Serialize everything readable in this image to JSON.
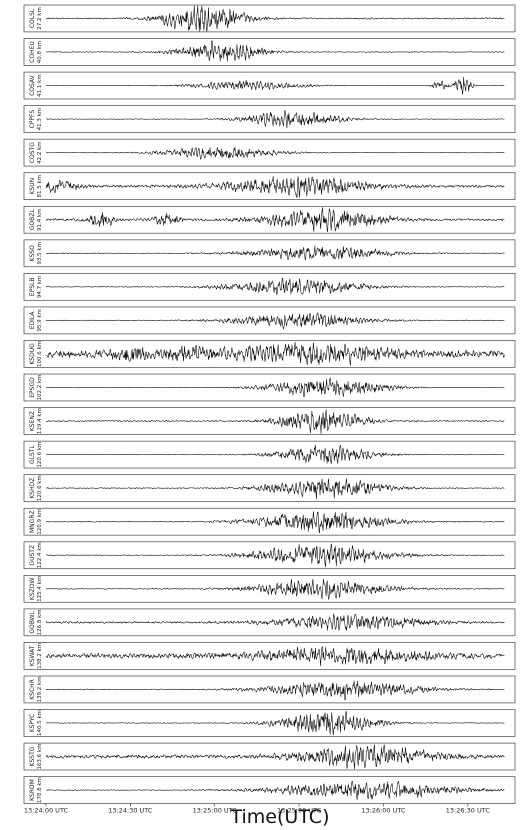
{
  "chart_data": {
    "type": "line",
    "xlabel": "Time(UTC)",
    "x_ticks": [
      "13:24:00 UTC",
      "13:24:30 UTC",
      "13:25:00 UTC",
      "13:25:30 UTC",
      "13:26:00 UTC",
      "13:26:30 UTC"
    ],
    "x_tick_seconds": [
      0,
      30,
      60,
      90,
      120,
      150
    ],
    "x_range": [
      0,
      165
    ],
    "grid": false,
    "legend": "none",
    "trace_color": "#000000",
    "series": [
      {
        "name": "COLSL",
        "distance": "27.2 km",
        "amp": 0.95,
        "noise": 0.05,
        "bursts": [
          [
            56,
            10,
            1.0
          ]
        ]
      },
      {
        "name": "COHEU",
        "distance": "40.8 km",
        "amp": 0.85,
        "noise": 0.03,
        "bursts": [
          [
            62,
            10,
            0.9
          ]
        ]
      },
      {
        "name": "COSAV",
        "distance": "41.1 km",
        "amp": 0.6,
        "noise": 0.02,
        "bursts": [
          [
            72,
            14,
            0.55
          ],
          [
            148,
            2,
            1.4
          ],
          [
            140,
            2,
            0.5
          ]
        ]
      },
      {
        "name": "CPPFS",
        "distance": "41.3 km",
        "amp": 0.7,
        "noise": 0.03,
        "bursts": [
          [
            88,
            12,
            0.8
          ]
        ]
      },
      {
        "name": "COSTG",
        "distance": "42.2 km",
        "amp": 0.6,
        "noise": 0.03,
        "bursts": [
          [
            62,
            14,
            0.7
          ]
        ]
      },
      {
        "name": "KSUN",
        "distance": "81.5 km",
        "amp": 0.75,
        "noise": 0.12,
        "bursts": [
          [
            88,
            18,
            0.8
          ],
          [
            3,
            6,
            0.5
          ]
        ]
      },
      {
        "name": "GOBZL",
        "distance": "91.4 km",
        "amp": 0.8,
        "noise": 0.1,
        "bursts": [
          [
            98,
            14,
            0.9
          ],
          [
            20,
            3,
            0.7
          ],
          [
            43,
            3,
            0.6
          ]
        ]
      },
      {
        "name": "KSSO",
        "distance": "93.5 km",
        "amp": 0.65,
        "noise": 0.05,
        "bursts": [
          [
            97,
            16,
            0.8
          ]
        ]
      },
      {
        "name": "EPSLB",
        "distance": "94.7 km",
        "amp": 0.7,
        "noise": 0.04,
        "bursts": [
          [
            88,
            16,
            0.85
          ]
        ]
      },
      {
        "name": "EDILA",
        "distance": "95.9 km",
        "amp": 0.65,
        "noise": 0.04,
        "bursts": [
          [
            90,
            16,
            0.8
          ]
        ]
      },
      {
        "name": "KSDUG",
        "distance": "100.6 km",
        "amp": 0.8,
        "noise": 0.3,
        "bursts": [
          [
            92,
            20,
            0.7
          ],
          [
            30,
            4,
            0.6
          ],
          [
            50,
            5,
            0.5
          ]
        ]
      },
      {
        "name": "EPSGD",
        "distance": "102.2 km",
        "amp": 0.75,
        "noise": 0.02,
        "bursts": [
          [
            100,
            14,
            0.9
          ]
        ]
      },
      {
        "name": "KSENZ",
        "distance": "119.4 km",
        "amp": 0.8,
        "noise": 0.06,
        "bursts": [
          [
            98,
            10,
            1.0
          ]
        ]
      },
      {
        "name": "GLSTL",
        "distance": "120.6 km",
        "amp": 0.7,
        "noise": 0.03,
        "bursts": [
          [
            99,
            12,
            0.9
          ]
        ]
      },
      {
        "name": "KSHDZ",
        "distance": "120.6 km",
        "amp": 0.8,
        "noise": 0.04,
        "bursts": [
          [
            100,
            14,
            0.9
          ]
        ]
      },
      {
        "name": "MNGRZ",
        "distance": "120.9 km",
        "amp": 0.8,
        "noise": 0.04,
        "bursts": [
          [
            98,
            16,
            0.9
          ]
        ]
      },
      {
        "name": "GUSTZ",
        "distance": "122.4 km",
        "amp": 0.8,
        "noise": 0.04,
        "bursts": [
          [
            98,
            16,
            0.9
          ]
        ]
      },
      {
        "name": "KSZOW",
        "distance": "125.4 km",
        "amp": 0.75,
        "noise": 0.04,
        "bursts": [
          [
            98,
            16,
            0.9
          ]
        ]
      },
      {
        "name": "GOBWL",
        "distance": "126.8 km",
        "amp": 0.7,
        "noise": 0.1,
        "bursts": [
          [
            108,
            18,
            0.75
          ]
        ]
      },
      {
        "name": "KSWAT",
        "distance": "138.2 km",
        "amp": 0.75,
        "noise": 0.22,
        "bursts": [
          [
            104,
            20,
            0.7
          ]
        ]
      },
      {
        "name": "KSCHR",
        "distance": "139.2 km",
        "amp": 0.75,
        "noise": 0.04,
        "bursts": [
          [
            106,
            18,
            0.85
          ]
        ]
      },
      {
        "name": "KSPYC",
        "distance": "140.5 km",
        "amp": 0.8,
        "noise": 0.03,
        "bursts": [
          [
            100,
            12,
            1.0
          ]
        ]
      },
      {
        "name": "KSSTG",
        "distance": "163.6 km",
        "amp": 0.8,
        "noise": 0.15,
        "bursts": [
          [
            114,
            16,
            0.85
          ]
        ]
      },
      {
        "name": "KSROM",
        "distance": "178.8 km",
        "amp": 0.75,
        "noise": 0.04,
        "bursts": [
          [
            114,
            22,
            0.8
          ]
        ]
      }
    ]
  }
}
